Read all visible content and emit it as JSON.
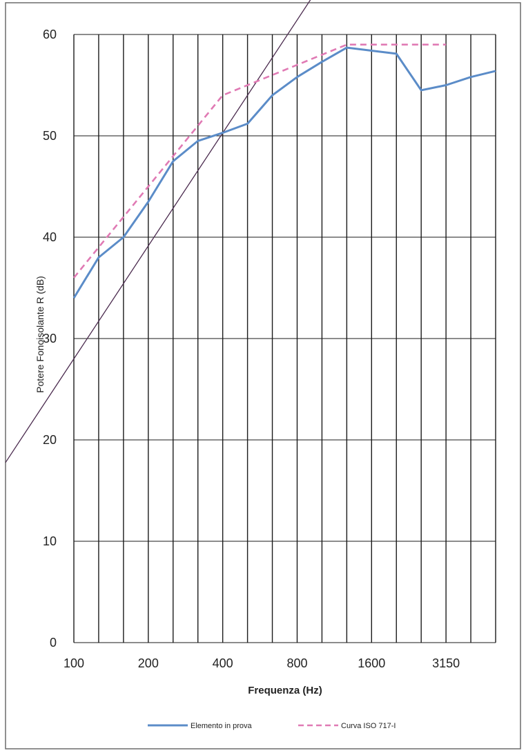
{
  "chart_data": {
    "type": "line",
    "title": "",
    "xlabel": "Frequenza  (Hz)",
    "ylabel": "Potere Fonoisolante R (dB)",
    "ylim": [
      0,
      60
    ],
    "yticks": [
      "0",
      "10",
      "20",
      "30",
      "40",
      "50",
      "60"
    ],
    "x_bands_hz": [
      100,
      125,
      160,
      200,
      250,
      315,
      400,
      500,
      630,
      800,
      1000,
      1250,
      1600,
      2000,
      2500,
      3150,
      4000,
      5000
    ],
    "xtick_labels": [
      {
        "band_index": 0,
        "label": "100"
      },
      {
        "band_index": 3,
        "label": "200"
      },
      {
        "band_index": 6,
        "label": "400"
      },
      {
        "band_index": 9,
        "label": "800"
      },
      {
        "band_index": 12,
        "label": "1600"
      },
      {
        "band_index": 15,
        "label": "3150"
      }
    ],
    "grid": true,
    "legend_position": "bottom",
    "series": [
      {
        "name": "Elemento in prova",
        "color": "#5b8cc8",
        "style": "solid",
        "values": [
          34,
          38,
          40,
          43.5,
          47.5,
          49.5,
          50.3,
          51.2,
          54,
          55.8,
          57.3,
          58.7,
          58.4,
          58.1,
          54.5,
          55,
          55.8,
          56.4
        ]
      },
      {
        "name": "Curva ISO 717-I",
        "color": "#e07ab4",
        "style": "dashed",
        "values": [
          36,
          39,
          42,
          45,
          48,
          51,
          54,
          55,
          56,
          57,
          58,
          59,
          59,
          59,
          59,
          59
        ]
      }
    ]
  },
  "annotations": {
    "pen_line_color": "#4a2a4e",
    "pen_line_endpoints_data": [
      [
        0,
        28
      ],
      [
        10.5,
        67
      ]
    ],
    "frame_color": "#6b6b6b"
  }
}
